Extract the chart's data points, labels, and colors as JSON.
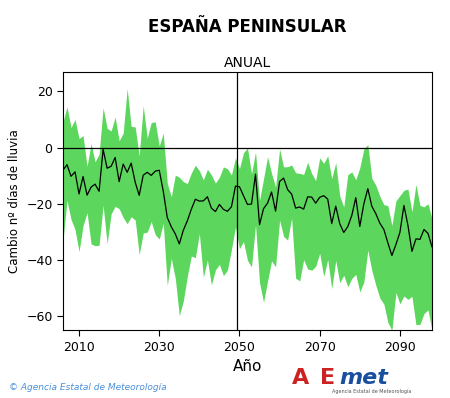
{
  "title": "ESPAÑA PENINSULAR",
  "subtitle": "ANUAL",
  "xlabel": "Año",
  "ylabel": "Cambio nº días de lluvia",
  "xlim": [
    2006,
    2098
  ],
  "ylim": [
    -65,
    27
  ],
  "yticks": [
    -60,
    -40,
    -20,
    0,
    20
  ],
  "xticks": [
    2010,
    2030,
    2050,
    2070,
    2090
  ],
  "vline_x": 2049.5,
  "hline_y": 0,
  "year_start": 2006,
  "year_end": 2098,
  "band_color": "#5cd65c",
  "line_color": "#000000",
  "background_color": "#ffffff",
  "copyright_text": "© Agencia Estatal de Meteorología",
  "copyright_color": "#4a90d9",
  "seed": 12
}
